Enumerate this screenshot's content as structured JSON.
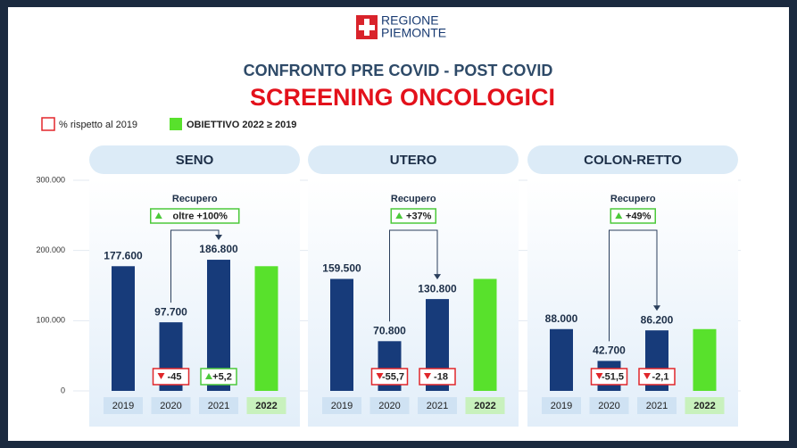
{
  "header": {
    "logo": [
      "REGIONE",
      "PIEMONTE"
    ],
    "subtitle": "CONFRONTO PRE COVID - POST COVID",
    "title": "SCREENING ONCOLOGICI",
    "legend": [
      {
        "label": "% rispetto al 2019",
        "color": "#e3262b"
      },
      {
        "label": "OBIETTIVO 2022 ≥ 2019",
        "color": "#58e12c"
      }
    ]
  },
  "chart_data": [
    {
      "type": "bar",
      "title": "SENO",
      "categories": [
        "2019",
        "2020",
        "2021",
        "2022"
      ],
      "values": [
        177600,
        97700,
        186800,
        177600
      ],
      "value_labels": [
        "177.600",
        "97.700",
        "186.800",
        null
      ],
      "colors": [
        "#173b7a",
        "#173b7a",
        "#173b7a",
        "#58e12c"
      ],
      "changes": [
        null,
        -45,
        5.2,
        null
      ],
      "change_labels": [
        null,
        "-45",
        "+5,2",
        null
      ],
      "annotation": {
        "title": "Recupero",
        "text": "oltre +100%"
      },
      "ylim": [
        0,
        300000
      ],
      "grid": true,
      "yticks": [
        {
          "value": 0,
          "label": "0"
        },
        {
          "value": 100000,
          "label": "100.000"
        },
        {
          "value": 200000,
          "label": "200.000"
        },
        {
          "value": 300000,
          "label": "300.000"
        }
      ]
    },
    {
      "type": "bar",
      "title": "UTERO",
      "categories": [
        "2019",
        "2020",
        "2021",
        "2022"
      ],
      "values": [
        159500,
        70800,
        130800,
        159500
      ],
      "value_labels": [
        "159.500",
        "70.800",
        "130.800",
        null
      ],
      "colors": [
        "#173b7a",
        "#173b7a",
        "#173b7a",
        "#58e12c"
      ],
      "changes": [
        null,
        -55.7,
        -18,
        null
      ],
      "change_labels": [
        null,
        "-55,7",
        "-18",
        null
      ],
      "annotation": {
        "title": "Recupero",
        "text": "+37%"
      },
      "ylim": [
        0,
        300000
      ]
    },
    {
      "type": "bar",
      "title": "COLON-RETTO",
      "categories": [
        "2019",
        "2020",
        "2021",
        "2022"
      ],
      "values": [
        88000,
        42700,
        86200,
        88000
      ],
      "value_labels": [
        "88.000",
        "42.700",
        "86.200",
        null
      ],
      "colors": [
        "#173b7a",
        "#173b7a",
        "#173b7a",
        "#58e12c"
      ],
      "changes": [
        null,
        -51.5,
        -2.1,
        null
      ],
      "change_labels": [
        null,
        "-51,5",
        "-2,1",
        null
      ],
      "annotation": {
        "title": "Recupero",
        "text": "+49%"
      },
      "ylim": [
        0,
        300000
      ]
    }
  ]
}
